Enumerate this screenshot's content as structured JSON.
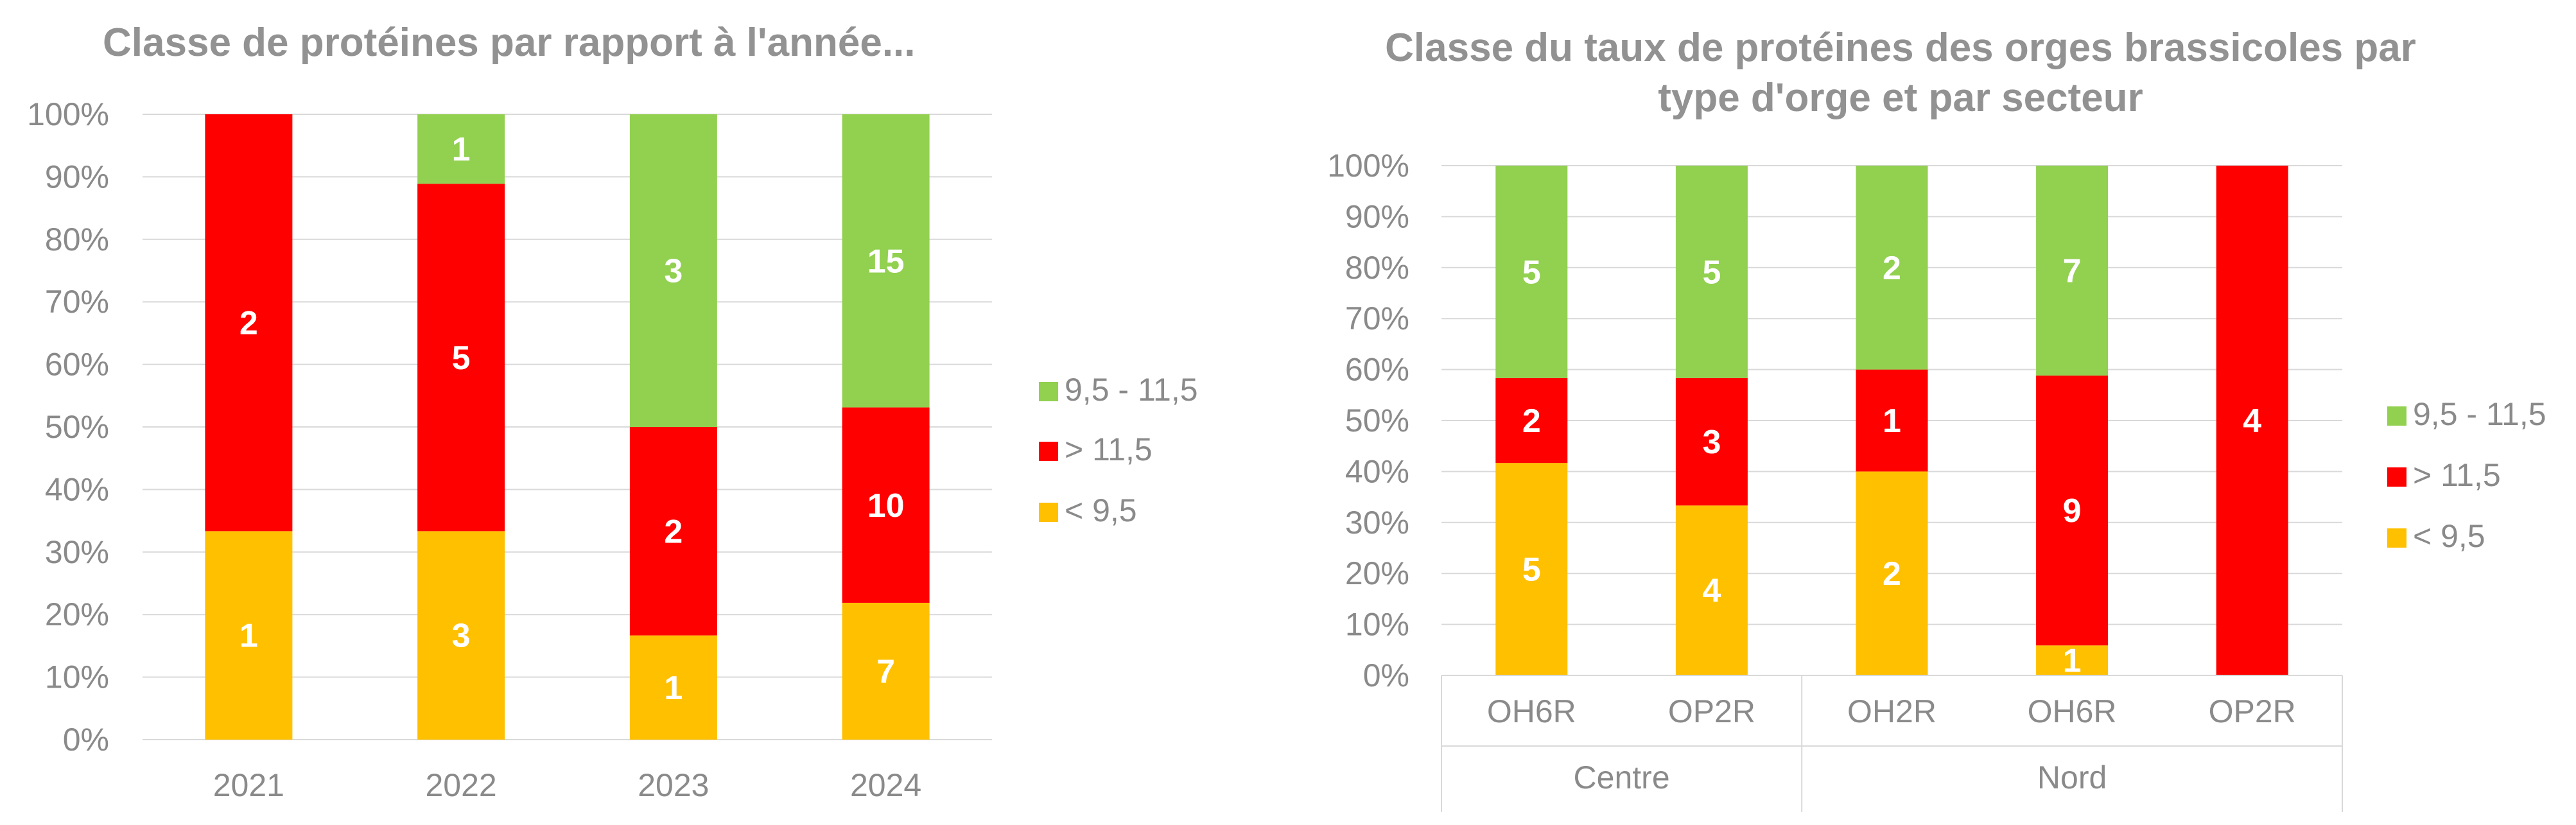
{
  "chart_data": [
    {
      "type": "bar",
      "stacked": true,
      "normalized": true,
      "title": "Classe de protéines par rapport à l'année...",
      "categories": [
        "2021",
        "2022",
        "2023",
        "2024"
      ],
      "series": [
        {
          "name": "< 9,5",
          "color": "#FFC000",
          "values": [
            1,
            3,
            1,
            7
          ]
        },
        {
          "name": "> 11,5",
          "color": "#FF0000",
          "values": [
            2,
            5,
            2,
            10
          ]
        },
        {
          "name": "9,5 - 11,5",
          "color": "#92D050",
          "values": [
            0,
            1,
            3,
            15
          ]
        }
      ],
      "yticks": [
        "0%",
        "10%",
        "20%",
        "30%",
        "40%",
        "50%",
        "60%",
        "70%",
        "80%",
        "90%",
        "100%"
      ],
      "ylim": [
        0,
        100
      ],
      "legend": "right",
      "legend_order": [
        "9,5 - 11,5",
        "> 11,5",
        "< 9,5"
      ],
      "grid": true
    },
    {
      "type": "bar",
      "stacked": true,
      "normalized": true,
      "title": "Classe du taux de protéines des orges brassicoles par type d'orge et par secteur",
      "categories": [
        "OH6R",
        "OP2R",
        "OH2R",
        "OH6R",
        "OP2R"
      ],
      "groups": [
        {
          "name": "Centre",
          "categories": [
            "OH6R",
            "OP2R"
          ]
        },
        {
          "name": "Nord",
          "categories": [
            "OH2R",
            "OH6R",
            "OP2R"
          ]
        }
      ],
      "series": [
        {
          "name": "< 9,5",
          "color": "#FFC000",
          "values": [
            5,
            4,
            2,
            1,
            0
          ]
        },
        {
          "name": "> 11,5",
          "color": "#FF0000",
          "values": [
            2,
            3,
            1,
            9,
            4
          ]
        },
        {
          "name": "9,5 - 11,5",
          "color": "#92D050",
          "values": [
            5,
            5,
            2,
            7,
            0
          ]
        }
      ],
      "yticks": [
        "0%",
        "10%",
        "20%",
        "30%",
        "40%",
        "50%",
        "60%",
        "70%",
        "80%",
        "90%",
        "100%"
      ],
      "ylim": [
        0,
        100
      ],
      "legend": "right",
      "legend_order": [
        "9,5 - 11,5",
        "> 11,5",
        "< 9,5"
      ],
      "grid": true
    }
  ]
}
